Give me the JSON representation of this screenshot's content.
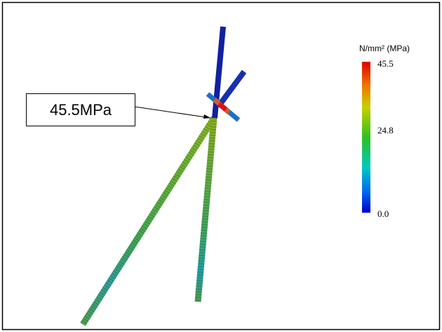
{
  "callout": {
    "label": "45.5MPa"
  },
  "colorbar": {
    "unit": "N/mm² (MPa)",
    "ticks": [
      "45.5",
      "24.8",
      "0.0"
    ]
  }
}
